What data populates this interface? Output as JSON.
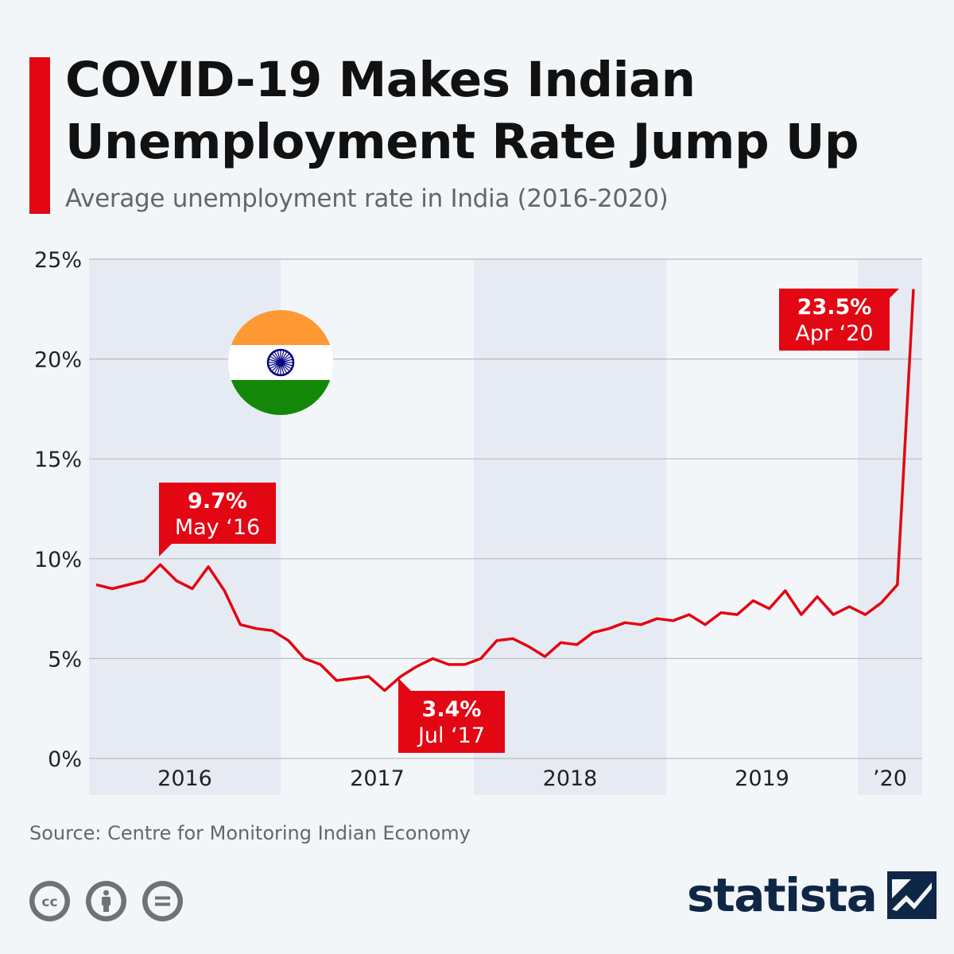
{
  "header": {
    "title_line1": "COVID-19 Makes Indian",
    "title_line2": "Unemployment Rate Jump Up",
    "subtitle": "Average unemployment rate in India (2016-2020)"
  },
  "footer": {
    "source": "Source: Centre for Monitoring Indian Economy",
    "license_icons": [
      "creative-commons-icon",
      "attribution-icon",
      "no-derivatives-icon"
    ],
    "brand": "statista"
  },
  "colors": {
    "accent": "#e30613",
    "line": "#e30613",
    "band": "#e6ebf3",
    "grid": "#b9bcc0",
    "brand": "#0f2747"
  },
  "decoration": {
    "flag": "india-flag-icon"
  },
  "chart_data": {
    "type": "line",
    "title": "",
    "xlabel": "",
    "ylabel": "",
    "unit": "%",
    "ylim": [
      0,
      25
    ],
    "yticks": [
      "0%",
      "5%",
      "10%",
      "15%",
      "20%",
      "25%"
    ],
    "year_bands": [
      "2016",
      "2017",
      "2018",
      "2019",
      "’20"
    ],
    "grid": true,
    "series": [
      {
        "values": [
          8.7,
          8.5,
          8.7,
          8.9,
          9.7,
          8.9,
          8.5,
          9.6,
          8.4,
          6.7,
          6.5,
          6.4,
          5.9,
          5.0,
          4.7,
          3.9,
          4.0,
          4.1,
          3.4,
          4.1,
          4.6,
          5.0,
          4.7,
          4.7,
          5.0,
          5.9,
          6.0,
          5.6,
          5.1,
          5.8,
          5.7,
          6.3,
          6.5,
          6.8,
          6.7,
          7.0,
          6.9,
          7.2,
          6.7,
          7.3,
          7.2,
          7.9,
          7.5,
          8.4,
          7.2,
          8.1,
          7.2,
          7.6,
          7.2,
          7.8,
          8.7,
          23.5
        ]
      }
    ],
    "annotations": [
      {
        "value": "9.7%",
        "label": "May ‘16"
      },
      {
        "value": "3.4%",
        "label": "Jul ‘17"
      },
      {
        "value": "23.5%",
        "label": "Apr ‘20"
      }
    ]
  }
}
